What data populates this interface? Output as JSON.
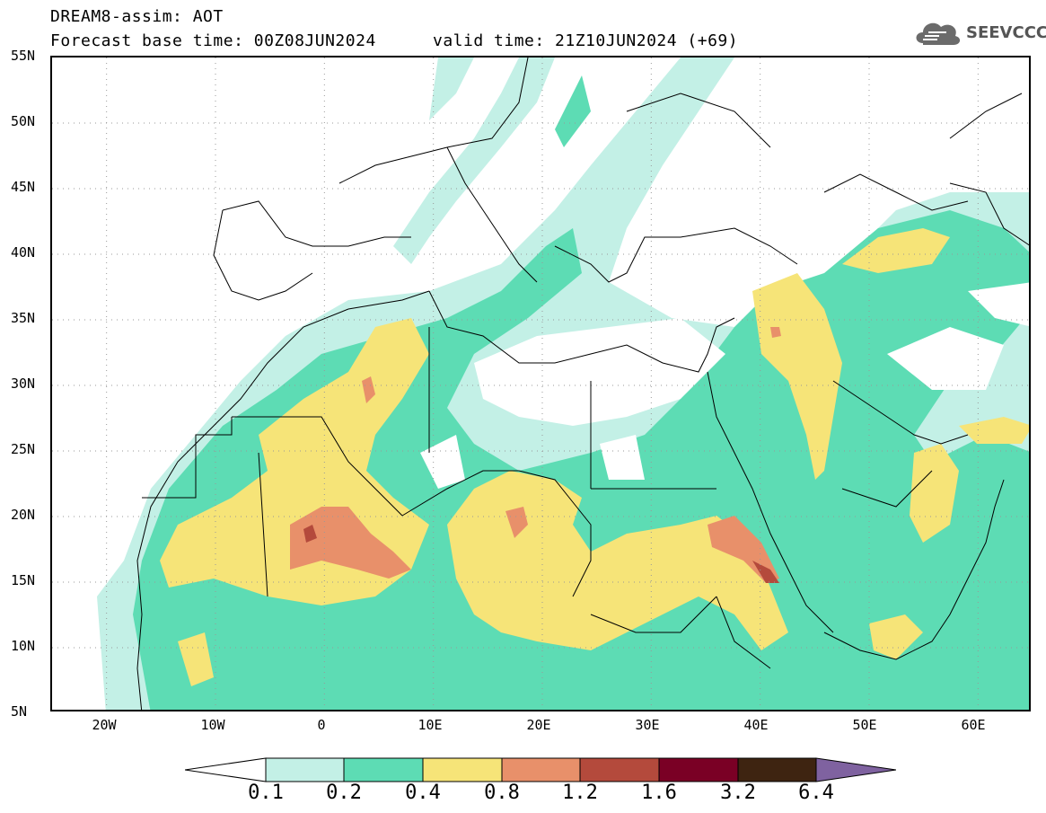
{
  "header": {
    "title_line1": "DREAM8-assim: AOT",
    "title_line2": "Forecast base time: 00Z08JUN2024",
    "valid_time": "valid time: 21Z10JUN2024 (+69)"
  },
  "logo": {
    "text": "SEEVCCC",
    "icon": "cloud-logo-icon"
  },
  "map": {
    "lat_labels": [
      "55N",
      "50N",
      "45N",
      "40N",
      "35N",
      "30N",
      "25N",
      "20N",
      "15N",
      "10N",
      "5N"
    ],
    "lon_labels": [
      "20W",
      "10W",
      "0",
      "10E",
      "20E",
      "30E",
      "40E",
      "50E",
      "60E"
    ],
    "lat_range": [
      5,
      55
    ],
    "lon_range": [
      -25,
      65
    ],
    "gridlines": "dotted"
  },
  "colorbar": {
    "labels": [
      "0.1",
      "0.2",
      "0.4",
      "0.8",
      "1.2",
      "1.6",
      "3.2",
      "6.4"
    ],
    "colors": [
      "#ffffff",
      "#c3f0e6",
      "#5ddcb4",
      "#f6e478",
      "#e8906a",
      "#b44a3c",
      "#7a0025",
      "#3e2411",
      "#7f62a0"
    ]
  }
}
